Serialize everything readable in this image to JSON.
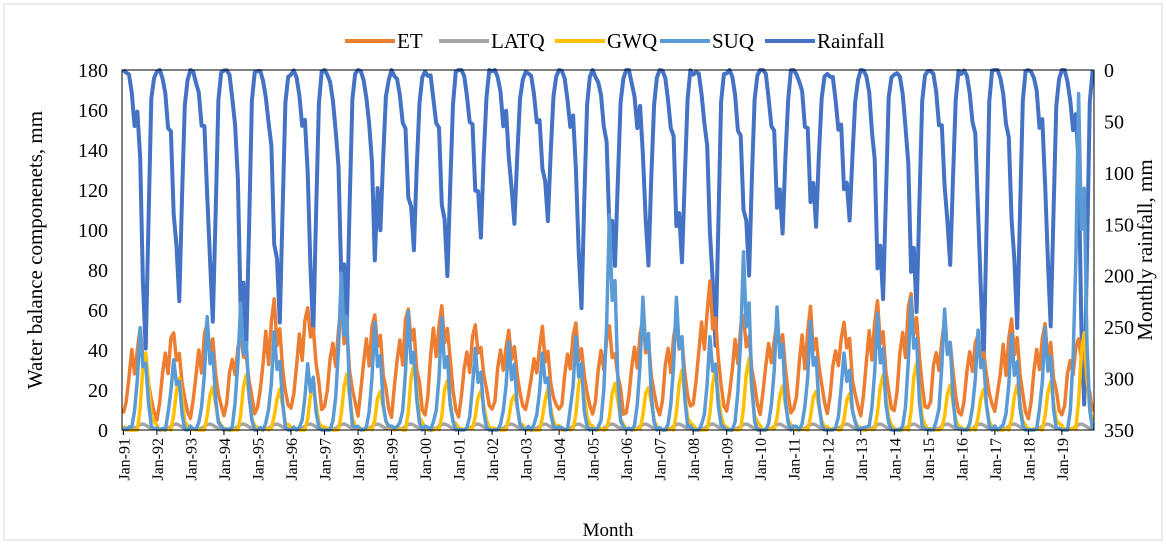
{
  "chart_data": {
    "type": "line",
    "xlabel": "Month",
    "ylabel": "Water balance componenets, mm",
    "y2label": "Monthly rainfall, mm",
    "ylim": [
      0,
      180
    ],
    "y2lim": [
      0,
      350
    ],
    "y2_inverted": true,
    "yticks": [
      0,
      20,
      40,
      60,
      80,
      100,
      120,
      140,
      160,
      180
    ],
    "y2ticks": [
      0,
      50,
      100,
      150,
      200,
      250,
      300,
      350
    ],
    "grid": false,
    "legend_position": "top",
    "x_start": "Jan-91",
    "x_end": "Dec-19",
    "xticks": [
      "Jan-91",
      "Jan-92",
      "Jan-93",
      "Jan-94",
      "Jan-95",
      "Jan-96",
      "Jan-97",
      "Jan-98",
      "Jan-99",
      "Jan-00",
      "Jan-01",
      "Jan-02",
      "Jan-03",
      "Jan-04",
      "Jan-05",
      "Jan-06",
      "Jan-07",
      "Jan-08",
      "Jan-09",
      "Jan-10",
      "Jan-11",
      "Jan-12",
      "Jan-13",
      "Jan-14",
      "Jan-15",
      "Jan-16",
      "Jan-17",
      "Jan-18",
      "Jan-19"
    ],
    "series": [
      {
        "name": "ET",
        "axis": "left",
        "color": "#ED7D31",
        "annual_peaks": [
          50,
          51,
          54,
          49,
          64,
          64,
          60,
          60,
          62,
          65,
          55,
          52,
          50,
          52,
          51,
          58,
          57,
          72,
          58,
          56,
          60,
          56,
          63,
          69,
          55,
          50,
          55,
          52,
          48
        ]
      },
      {
        "name": "LATQ",
        "axis": "left",
        "color": "#A5A5A5",
        "annual_peaks": [
          3,
          3,
          3,
          3,
          3,
          3,
          3,
          3,
          3,
          3,
          3,
          3,
          3,
          3,
          3,
          3,
          3,
          3,
          3,
          3,
          3,
          3,
          3,
          3,
          3,
          3,
          3,
          3,
          3
        ]
      },
      {
        "name": "GWQ",
        "axis": "left",
        "color": "#FFC000",
        "annual_peaks": [
          38,
          25,
          22,
          28,
          20,
          21,
          28,
          20,
          32,
          25,
          20,
          18,
          20,
          28,
          24,
          22,
          30,
          30,
          35,
          22,
          20,
          18,
          28,
          34,
          22,
          20,
          22,
          24,
          48
        ]
      },
      {
        "name": "SUQ",
        "axis": "left",
        "color": "#5B9BD5",
        "annual_peaks": [
          50,
          37,
          55,
          65,
          50,
          35,
          80,
          55,
          58,
          55,
          40,
          45,
          40,
          45,
          108,
          68,
          65,
          48,
          88,
          62,
          54,
          40,
          58,
          65,
          62,
          50,
          48,
          50,
          170
        ]
      },
      {
        "name": "Rainfall",
        "axis": "right",
        "color": "#4472C4",
        "annual_max": [
          270,
          228,
          248,
          270,
          250,
          258,
          250,
          155,
          180,
          200,
          160,
          150,
          150,
          230,
          190,
          190,
          190,
          270,
          200,
          160,
          150,
          150,
          225,
          232,
          190,
          280,
          250,
          250,
          330
        ],
        "annual_secondary": [
          90,
          140,
          120,
          240,
          170,
          100,
          200,
          190,
          120,
          135,
          120,
          90,
          100,
          100,
          150,
          80,
          150,
          160,
          140,
          130,
          130,
          120,
          190,
          200,
          110,
          140,
          145,
          115,
          90
        ]
      }
    ]
  }
}
